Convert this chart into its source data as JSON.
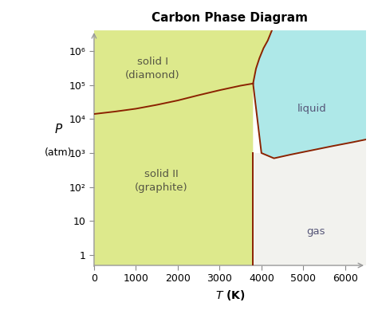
{
  "title": "Carbon Phase Diagram",
  "xlabel": "T (K)",
  "ylabel_line1": "P",
  "ylabel_line2": "(atm)",
  "xlim": [
    0,
    6500
  ],
  "ylim_log": [
    0.5,
    4000000.0
  ],
  "xticks": [
    0,
    1000,
    2000,
    3000,
    4000,
    5000,
    6000
  ],
  "yticks_log": [
    1,
    10,
    100,
    1000,
    10000,
    100000,
    1000000
  ],
  "ytick_labels": [
    "1",
    "10",
    "10²",
    "10³",
    "10⁴",
    "10⁵",
    "10⁶"
  ],
  "color_solid": "#dde98c",
  "color_liquid": "#aee8e8",
  "color_gas": "#f2f2ee",
  "color_boundary": "#8B2200",
  "label_solid1": "solid I\n(diamond)",
  "label_solid2": "solid II\n(graphite)",
  "label_liquid": "liquid",
  "label_gas": "gas",
  "background": "#ffffff",
  "T_gd": [
    0,
    500,
    1000,
    1500,
    2000,
    2500,
    3000,
    3500,
    3800
  ],
  "P_gd": [
    14000.0,
    16500.0,
    20000.0,
    26000.0,
    35000.0,
    50000.0,
    70000.0,
    95000.0,
    110000.0
  ],
  "T_dl": [
    3800,
    3870,
    3950,
    4050,
    4150,
    4250
  ],
  "P_dl": [
    110000.0,
    300000.0,
    600000.0,
    1200000.0,
    2000000.0,
    4000000.0
  ],
  "T_melt": [
    3800,
    4000,
    4300,
    4700,
    5200,
    5700,
    6200,
    6500
  ],
  "P_melt": [
    110000.0,
    1000,
    700,
    900,
    1200,
    1600,
    2100,
    2500
  ],
  "T_trip_low": 3800,
  "P_trip_low": 1000,
  "T_sub": [
    3800,
    3800
  ],
  "P_sub": [
    1000,
    0.5
  ]
}
